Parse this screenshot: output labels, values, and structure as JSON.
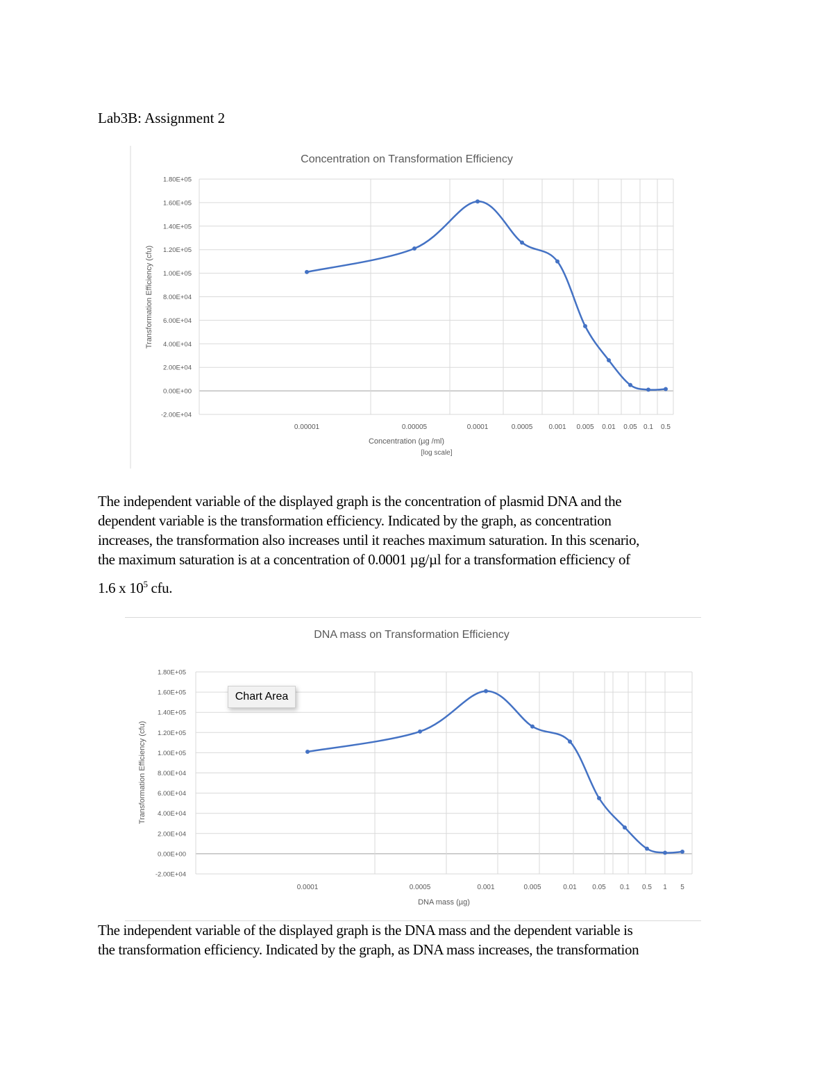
{
  "document": {
    "heading": "Lab3B: Assignment 2",
    "paragraph1": {
      "lines": [
        "The independent variable of the displayed graph is the concentration of plasmid DNA and the",
        "dependent variable is the transformation efficiency. Indicated by the graph, as concentration",
        "increases, the transformation also increases until it reaches maximum saturation. In this scenario,",
        "the maximum saturation is at a concentration of 0.0001 µg/µl for a transformation efficiency of"
      ],
      "last_line_pre": "1.6 x 10",
      "last_line_sup": "5",
      "last_line_post": " cfu."
    },
    "paragraph2": {
      "lines": [
        "The independent variable of the displayed graph is the DNA mass and the dependent variable is",
        "the transformation efficiency. Indicated by the graph, as DNA mass increases, the transformation"
      ]
    },
    "tooltip": "Chart Area"
  },
  "chart_data": [
    {
      "type": "line",
      "title": "Concentration on Transformation Efficiency",
      "xlabel": "Concentration (µg /ml)",
      "xlabel_note": "[log scale]",
      "ylabel": "Transformation Efficiency (cfu)",
      "categories": [
        "0.00001",
        "0.00005",
        "0.0001",
        "0.0005",
        "0.001",
        "0.005",
        "0.01",
        "0.05",
        "0.1",
        "0.5"
      ],
      "values": [
        101000,
        121000,
        161000,
        126000,
        110000,
        55000,
        26000,
        5000,
        1000,
        1500
      ],
      "yticks": [
        "-2.00E+04",
        "0.00E+00",
        "2.00E+04",
        "4.00E+04",
        "6.00E+04",
        "8.00E+04",
        "1.00E+05",
        "1.20E+05",
        "1.40E+05",
        "1.60E+05",
        "1.80E+05"
      ],
      "ylim": [
        -20000,
        180000
      ],
      "smooth": true,
      "grid": true,
      "color": "#4472c4"
    },
    {
      "type": "line",
      "title": "DNA mass on Transformation Efficiency",
      "xlabel": "DNA mass (µg)",
      "ylabel": "Transformation Efficiency (cfu)",
      "categories": [
        "0.0001",
        "0.0005",
        "0.001",
        "0.005",
        "0.01",
        "0.05",
        "0.1",
        "0.5",
        "1",
        "5"
      ],
      "values": [
        101000,
        121000,
        161000,
        126000,
        111000,
        55000,
        26000,
        5000,
        1000,
        2000
      ],
      "yticks": [
        "-2.00E+04",
        "0.00E+00",
        "2.00E+04",
        "4.00E+04",
        "6.00E+04",
        "8.00E+04",
        "1.00E+05",
        "1.20E+05",
        "1.40E+05",
        "1.60E+05",
        "1.80E+05"
      ],
      "ylim": [
        -20000,
        180000
      ],
      "smooth": true,
      "grid": true,
      "color": "#4472c4"
    }
  ]
}
